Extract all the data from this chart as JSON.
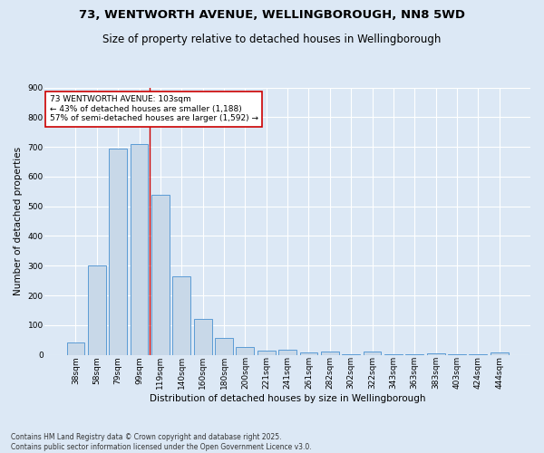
{
  "title": "73, WENTWORTH AVENUE, WELLINGBOROUGH, NN8 5WD",
  "subtitle": "Size of property relative to detached houses in Wellingborough",
  "xlabel": "Distribution of detached houses by size in Wellingborough",
  "ylabel": "Number of detached properties",
  "categories": [
    "38sqm",
    "58sqm",
    "79sqm",
    "99sqm",
    "119sqm",
    "140sqm",
    "160sqm",
    "180sqm",
    "200sqm",
    "221sqm",
    "241sqm",
    "261sqm",
    "282sqm",
    "302sqm",
    "322sqm",
    "343sqm",
    "363sqm",
    "383sqm",
    "403sqm",
    "424sqm",
    "444sqm"
  ],
  "values": [
    42,
    300,
    695,
    710,
    540,
    265,
    122,
    57,
    25,
    14,
    17,
    7,
    10,
    2,
    10,
    2,
    2,
    4,
    1,
    2,
    7
  ],
  "bar_color": "#c8d8e8",
  "bar_edge_color": "#5b9bd5",
  "vline_x": 3.5,
  "vline_color": "#cc0000",
  "annotation_text": "73 WENTWORTH AVENUE: 103sqm\n← 43% of detached houses are smaller (1,188)\n57% of semi-detached houses are larger (1,592) →",
  "annotation_box_color": "#ffffff",
  "annotation_box_edge_color": "#cc0000",
  "ylim": [
    0,
    900
  ],
  "yticks": [
    0,
    100,
    200,
    300,
    400,
    500,
    600,
    700,
    800,
    900
  ],
  "background_color": "#dce8f5",
  "plot_background": "#dce8f5",
  "grid_color": "#ffffff",
  "footer": "Contains HM Land Registry data © Crown copyright and database right 2025.\nContains public sector information licensed under the Open Government Licence v3.0.",
  "title_fontsize": 9.5,
  "subtitle_fontsize": 8.5,
  "axis_label_fontsize": 7.5,
  "tick_fontsize": 6.5,
  "annotation_fontsize": 6.5,
  "footer_fontsize": 5.5
}
